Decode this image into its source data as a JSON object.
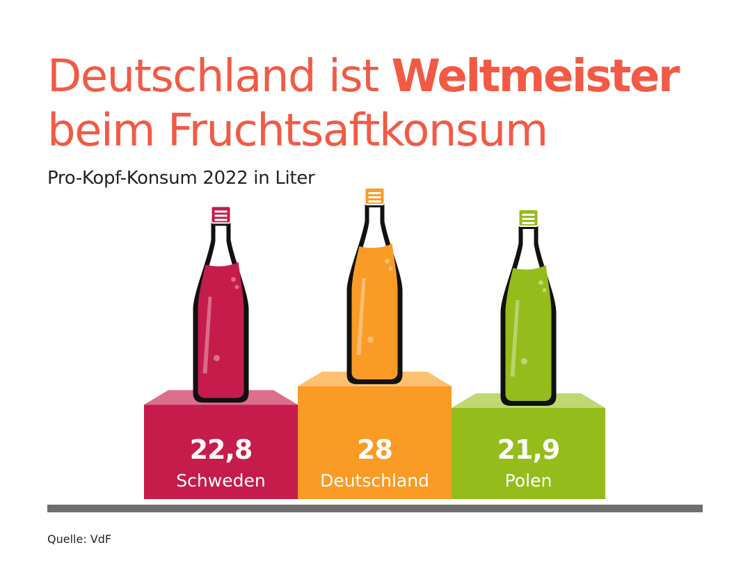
{
  "title": {
    "line1_regular": "Deutschland ist ",
    "line1_bold": "Weltmeister",
    "line2": "beim Fruchtsaftkonsum"
  },
  "subtitle": "Pro-Kopf-Konsum 2022 in Liter",
  "source": "Quelle: VdF",
  "colors": {
    "title": "#f25a45",
    "text": "#222222",
    "baseline": "#6e6e6e"
  },
  "chart_data": {
    "type": "bar",
    "categories": [
      "Schweden",
      "Deutschland",
      "Polen"
    ],
    "values": [
      22.8,
      28,
      21.9
    ],
    "value_labels": [
      "22,8",
      "28",
      "21,9"
    ],
    "colors": [
      "#c51c4c",
      "#f99b25",
      "#94bc1b"
    ],
    "top_colors": [
      "#dd6e8c",
      "#fcc070",
      "#bfd873"
    ],
    "title": "Deutschland ist Weltmeister beim Fruchtsaftkonsum",
    "ylabel": "Pro-Kopf-Konsum 2022 in Liter",
    "xlabel": "",
    "grid": false,
    "legend": "none"
  }
}
